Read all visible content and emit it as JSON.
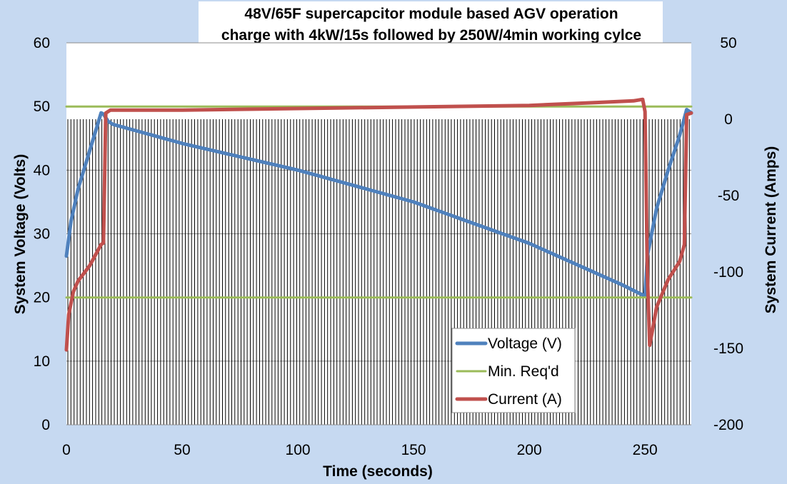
{
  "chart_data": {
    "type": "line",
    "title": [
      "48V/65F supercapcitor module based AGV operation",
      "charge with 4kW/15s followed by 250W/4min working cylce"
    ],
    "xlabel": "Time (seconds)",
    "ylabel": "System Voltage (Volts)",
    "y2label": "System Current  (Amps)",
    "xlim": [
      0,
      270
    ],
    "ylim": [
      0,
      60
    ],
    "y2lim": [
      -200,
      50
    ],
    "x_ticks": [
      0,
      50,
      100,
      150,
      200,
      250
    ],
    "y_ticks": [
      0,
      10,
      20,
      30,
      40,
      50,
      60
    ],
    "y2_ticks": [
      -200,
      -150,
      -100,
      -50,
      0,
      50
    ],
    "gridlines": true,
    "legend_position": "bottom-right",
    "hatch_fill_top_voltage": 48,
    "series": [
      {
        "name": "Voltage (V)",
        "axis": "left",
        "color": "#4f81bd",
        "x": [
          0,
          2,
          5,
          10,
          15,
          16,
          18,
          20,
          50,
          100,
          150,
          200,
          240,
          250,
          251,
          255,
          260,
          265,
          268,
          270
        ],
        "y": [
          26.5,
          32.0,
          37.0,
          43.0,
          49.0,
          48.8,
          47.7,
          47.2,
          44.2,
          40.0,
          35.0,
          28.5,
          22.0,
          20.2,
          26.5,
          34.0,
          40.0,
          45.5,
          49.5,
          49.0
        ]
      },
      {
        "name": "Min. Req'd",
        "axis": "left",
        "color": "#9bbb59",
        "x": [
          0,
          270
        ],
        "y": [
          20,
          20
        ]
      },
      {
        "name": "",
        "axis": "left",
        "color": "#9bbb59",
        "x": [
          0,
          270
        ],
        "y": [
          50,
          50
        ]
      },
      {
        "name": "Current (A)",
        "axis": "right",
        "color": "#c0504d",
        "x": [
          0,
          1,
          3,
          5,
          10,
          15,
          16,
          17,
          19,
          50,
          100,
          150,
          200,
          230,
          245,
          249,
          250,
          251,
          252,
          253,
          255,
          260,
          265,
          267,
          268,
          270
        ],
        "y": [
          -151,
          -128,
          -113,
          -106,
          -96,
          -82,
          -81,
          4,
          6,
          6,
          7,
          8,
          9,
          11,
          12,
          13,
          5,
          -100,
          -148,
          -140,
          -123,
          -105,
          -93,
          -82,
          3,
          4
        ]
      }
    ]
  }
}
